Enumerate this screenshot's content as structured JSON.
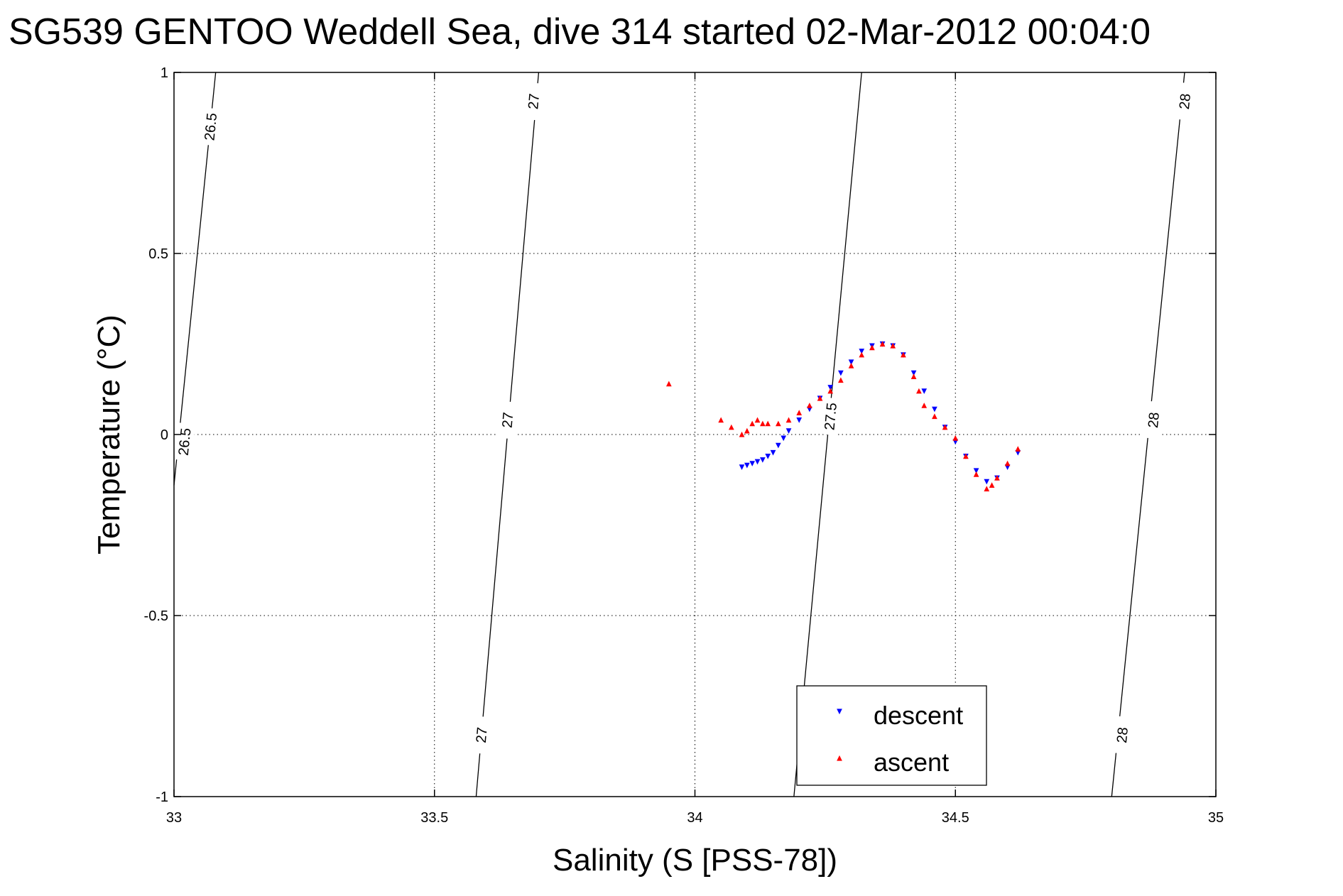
{
  "chart_data": {
    "type": "scatter",
    "title": "SG539 GENTOO Weddell Sea, dive 314 started 02-Mar-2012 00:04:0",
    "xlabel": "Salinity (S [PSS-78])",
    "ylabel": "Temperature (°C)",
    "xlim": [
      33,
      35
    ],
    "ylim": [
      -1,
      1
    ],
    "xticks": [
      33,
      33.5,
      34,
      34.5,
      35
    ],
    "xtick_labels": [
      "33",
      "33.5",
      "34",
      "34.5",
      "35"
    ],
    "yticks": [
      -1,
      -0.5,
      0,
      0.5,
      1
    ],
    "ytick_labels": [
      "-1",
      "-0.5",
      "0",
      "0.5",
      "1"
    ],
    "grid": true,
    "legend_position": "bottom-right",
    "density_contours": [
      {
        "level": "26.5",
        "points": [
          [
            33.0,
            -0.14
          ],
          [
            33.08,
            1.0
          ]
        ],
        "labels": [
          {
            "x": 33.02,
            "y": -0.02
          },
          {
            "x": 33.07,
            "y": 0.85
          }
        ]
      },
      {
        "level": "27",
        "points": [
          [
            33.58,
            -1.0
          ],
          [
            33.7,
            1.0
          ]
        ],
        "labels": [
          {
            "x": 33.59,
            "y": -0.83
          },
          {
            "x": 33.64,
            "y": 0.04
          },
          {
            "x": 33.69,
            "y": 0.92
          }
        ]
      },
      {
        "level": "27.5",
        "points": [
          [
            34.19,
            -1.0
          ],
          [
            34.32,
            1.0
          ]
        ],
        "labels": [
          {
            "x": 34.26,
            "y": 0.05
          }
        ]
      },
      {
        "level": "28",
        "points": [
          [
            34.8,
            -1.0
          ],
          [
            34.94,
            1.0
          ]
        ],
        "labels": [
          {
            "x": 34.82,
            "y": -0.83
          },
          {
            "x": 34.88,
            "y": 0.04
          },
          {
            "x": 34.94,
            "y": 0.92
          }
        ]
      }
    ],
    "series": [
      {
        "name": "descent",
        "color": "#0000ff",
        "marker": "triangle-down",
        "points": [
          [
            34.09,
            -0.09
          ],
          [
            34.1,
            -0.085
          ],
          [
            34.11,
            -0.08
          ],
          [
            34.12,
            -0.075
          ],
          [
            34.13,
            -0.07
          ],
          [
            34.14,
            -0.06
          ],
          [
            34.15,
            -0.05
          ],
          [
            34.16,
            -0.03
          ],
          [
            34.17,
            -0.01
          ],
          [
            34.18,
            0.01
          ],
          [
            34.2,
            0.04
          ],
          [
            34.22,
            0.07
          ],
          [
            34.24,
            0.1
          ],
          [
            34.26,
            0.13
          ],
          [
            34.28,
            0.17
          ],
          [
            34.3,
            0.2
          ],
          [
            34.32,
            0.23
          ],
          [
            34.34,
            0.245
          ],
          [
            34.36,
            0.25
          ],
          [
            34.38,
            0.245
          ],
          [
            34.4,
            0.22
          ],
          [
            34.42,
            0.17
          ],
          [
            34.44,
            0.12
          ],
          [
            34.46,
            0.07
          ],
          [
            34.48,
            0.02
          ],
          [
            34.5,
            -0.02
          ],
          [
            34.52,
            -0.06
          ],
          [
            34.54,
            -0.1
          ],
          [
            34.56,
            -0.13
          ],
          [
            34.58,
            -0.12
          ],
          [
            34.6,
            -0.09
          ],
          [
            34.62,
            -0.05
          ]
        ]
      },
      {
        "name": "ascent",
        "color": "#ff0000",
        "marker": "triangle-up",
        "points": [
          [
            33.95,
            0.14
          ],
          [
            34.05,
            0.04
          ],
          [
            34.07,
            0.02
          ],
          [
            34.09,
            0.0
          ],
          [
            34.1,
            0.01
          ],
          [
            34.11,
            0.03
          ],
          [
            34.12,
            0.04
          ],
          [
            34.13,
            0.03
          ],
          [
            34.14,
            0.03
          ],
          [
            34.16,
            0.03
          ],
          [
            34.18,
            0.04
          ],
          [
            34.2,
            0.06
          ],
          [
            34.22,
            0.08
          ],
          [
            34.24,
            0.1
          ],
          [
            34.26,
            0.12
          ],
          [
            34.28,
            0.15
          ],
          [
            34.3,
            0.19
          ],
          [
            34.32,
            0.22
          ],
          [
            34.34,
            0.24
          ],
          [
            34.36,
            0.25
          ],
          [
            34.38,
            0.245
          ],
          [
            34.4,
            0.22
          ],
          [
            34.42,
            0.16
          ],
          [
            34.43,
            0.12
          ],
          [
            34.44,
            0.08
          ],
          [
            34.46,
            0.05
          ],
          [
            34.48,
            0.02
          ],
          [
            34.5,
            -0.01
          ],
          [
            34.52,
            -0.06
          ],
          [
            34.54,
            -0.11
          ],
          [
            34.56,
            -0.15
          ],
          [
            34.57,
            -0.14
          ],
          [
            34.58,
            -0.12
          ],
          [
            34.6,
            -0.08
          ],
          [
            34.62,
            -0.04
          ]
        ]
      }
    ]
  }
}
